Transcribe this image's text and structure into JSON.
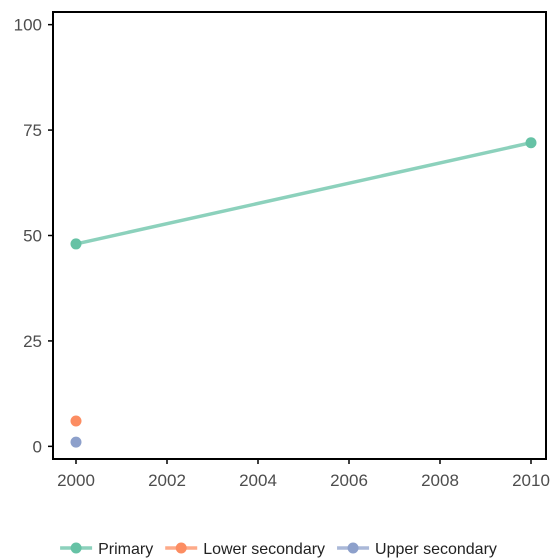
{
  "chart_data": {
    "type": "line",
    "title": "",
    "xlabel": "",
    "ylabel": "",
    "xlim": [
      2000,
      2010
    ],
    "ylim": [
      -3,
      103
    ],
    "x_ticks": [
      2000,
      2002,
      2004,
      2006,
      2008,
      2010
    ],
    "y_ticks": [
      0,
      25,
      50,
      75,
      100
    ],
    "grid": false,
    "legend_position": "bottom",
    "series": [
      {
        "name": "Primary",
        "color": "#66c2a5",
        "points": [
          [
            2000,
            48
          ],
          [
            2010,
            72
          ]
        ]
      },
      {
        "name": "Lower secondary",
        "color": "#fc8d62",
        "points": [
          [
            2000,
            6
          ]
        ]
      },
      {
        "name": "Upper secondary",
        "color": "#8da0cb",
        "points": [
          [
            2000,
            1
          ]
        ]
      }
    ]
  }
}
